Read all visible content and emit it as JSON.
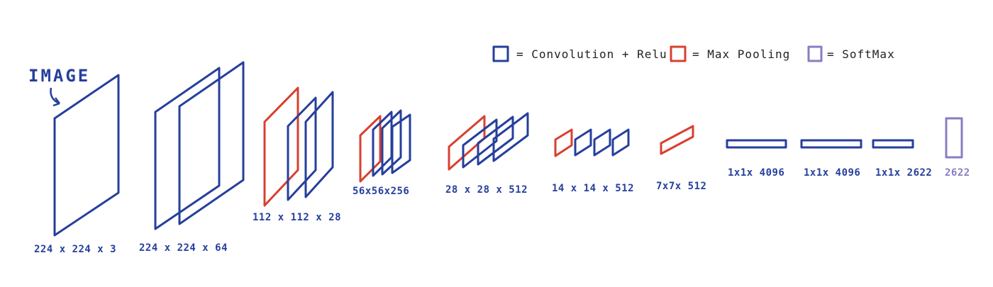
{
  "colors": {
    "conv": "#263f9c",
    "pool": "#d8402f",
    "softmax": "#8a7cc3",
    "text": "#263f9c",
    "legend_text": "#222222"
  },
  "diagram": {
    "title": "IMAGE",
    "legend": [
      {
        "type": "conv",
        "label": "= Convolution + Relu",
        "color": "#263f9c"
      },
      {
        "type": "pool",
        "label": "= Max Pooling",
        "color": "#d8402f"
      },
      {
        "type": "softmax",
        "label": "= SoftMax",
        "color": "#8a7cc3"
      }
    ],
    "layers": [
      {
        "kind": "conv",
        "label": "224 x 224 x 3"
      },
      {
        "kind": "conv",
        "label": "224 x 224 x 64"
      },
      {
        "kind": "pool+conv",
        "label": "112 x 112 x 28"
      },
      {
        "kind": "pool+conv",
        "label": "56x56x256"
      },
      {
        "kind": "pool+conv",
        "label": "28 x 28 x 512"
      },
      {
        "kind": "pool+conv",
        "label": "14 x 14 x 512"
      },
      {
        "kind": "pool",
        "label": "7x7x 512"
      },
      {
        "kind": "fc",
        "label": "1x1x 4096"
      },
      {
        "kind": "fc",
        "label": "1x1x 4096"
      },
      {
        "kind": "fc",
        "label": "1x1x 2622"
      },
      {
        "kind": "softmax",
        "label": "2622"
      }
    ]
  }
}
